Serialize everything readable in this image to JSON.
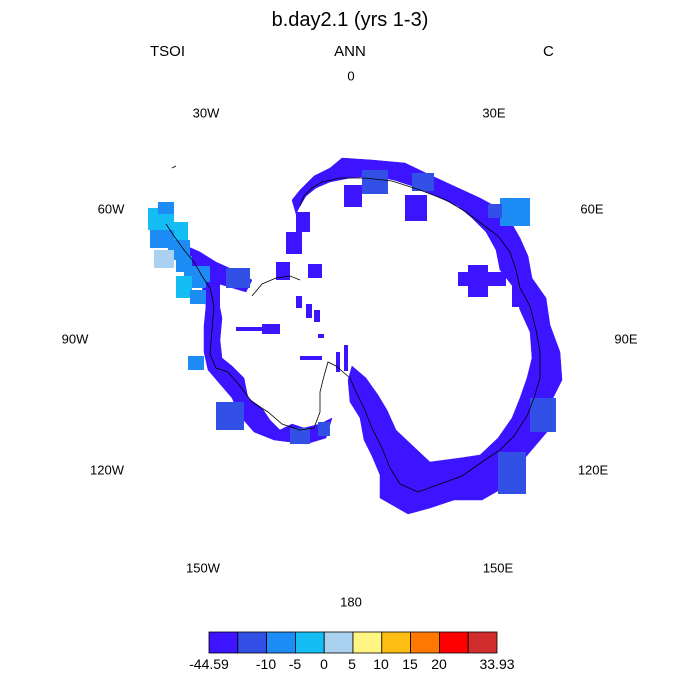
{
  "title": "b.day2.1 (yrs 1-3)",
  "subtitle_left": "TSOI",
  "subtitle_center": "ANN",
  "subtitle_right": "C",
  "longitude_labels": [
    "0",
    "30E",
    "60E",
    "90E",
    "120E",
    "150E",
    "180",
    "150W",
    "120W",
    "90W",
    "60W",
    "30W"
  ],
  "colorbar": {
    "colors": [
      "#3c14ff",
      "#3250e6",
      "#1e8cf5",
      "#14bef5",
      "#aad2f0",
      "#fff582",
      "#ffbe14",
      "#ff7800",
      "#ff0000",
      "#d22d2d"
    ],
    "labels": [
      "-44.59",
      "-10",
      "-5",
      "0",
      "5",
      "10",
      "15",
      "20",
      "33.93"
    ]
  }
}
